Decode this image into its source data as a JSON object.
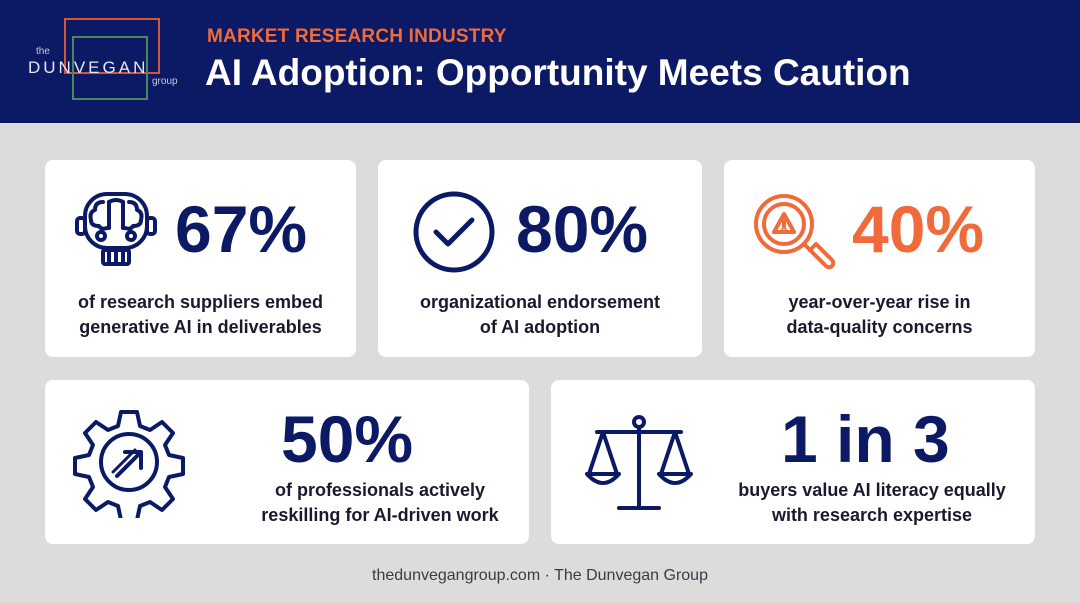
{
  "header": {
    "logo": {
      "the": "the",
      "name": "DUNVEGAN",
      "group": "group"
    },
    "kicker": "MARKET RESEARCH INDUSTRY",
    "title": "AI Adoption: Opportunity Meets Caution"
  },
  "stats": [
    {
      "value": "67%",
      "line1": "of research suppliers embed",
      "line2": "generative AI in deliverables",
      "icon": "robot-brain-icon",
      "color": "#0c1a66"
    },
    {
      "value": "80%",
      "line1": "organizational endorsement",
      "line2": "of AI adoption",
      "icon": "checkmark-circle-icon",
      "color": "#0c1a66"
    },
    {
      "value": "40%",
      "line1": "year-over-year rise in",
      "line2": "data-quality concerns",
      "icon": "magnifier-warning-icon",
      "color": "#f06a3a"
    },
    {
      "value": "50%",
      "line1": "of professionals actively",
      "line2": "reskilling for AI-driven work",
      "icon": "gear-arrow-icon",
      "color": "#0c1a66"
    },
    {
      "value": "1 in 3",
      "line1": "buyers value AI literacy equally",
      "line2": "with research expertise",
      "icon": "balance-scale-icon",
      "color": "#0c1a66"
    }
  ],
  "footer": "thedunvegangroup.com · The Dunvegan Group"
}
